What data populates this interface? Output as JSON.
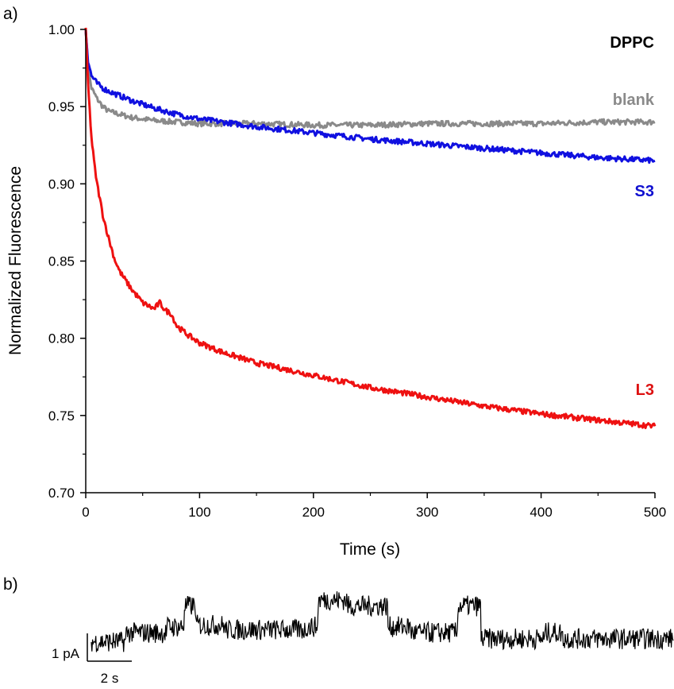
{
  "panel_labels": [
    "a)",
    "b)"
  ],
  "chart_data": [
    {
      "type": "line",
      "title": "DPPC",
      "xlabel": "Time (s)",
      "ylabel": "Normalized Fluorescence",
      "xlim": [
        0,
        500
      ],
      "ylim": [
        0.7,
        1.0
      ],
      "x_ticks": [
        "0",
        "100",
        "200",
        "300",
        "400",
        "500"
      ],
      "y_ticks": [
        "0.70",
        "0.75",
        "0.80",
        "0.85",
        "0.90",
        "0.95",
        "1.00"
      ],
      "grid": false,
      "series": [
        {
          "name": "blank",
          "color": "#8a8a8a",
          "x": [
            0,
            2,
            5,
            10,
            15,
            20,
            30,
            40,
            60,
            80,
            100,
            150,
            200,
            250,
            300,
            350,
            400,
            450,
            500
          ],
          "y": [
            1.0,
            0.975,
            0.962,
            0.955,
            0.95,
            0.947,
            0.945,
            0.943,
            0.941,
            0.94,
            0.939,
            0.939,
            0.938,
            0.938,
            0.939,
            0.939,
            0.939,
            0.94,
            0.94
          ]
        },
        {
          "name": "S3",
          "color": "#1010e0",
          "x": [
            0,
            2,
            5,
            10,
            15,
            20,
            30,
            40,
            60,
            80,
            100,
            150,
            200,
            250,
            300,
            350,
            400,
            450,
            500
          ],
          "y": [
            1.0,
            0.98,
            0.97,
            0.965,
            0.962,
            0.96,
            0.957,
            0.954,
            0.949,
            0.945,
            0.942,
            0.937,
            0.933,
            0.929,
            0.926,
            0.923,
            0.92,
            0.917,
            0.915
          ]
        },
        {
          "name": "L3",
          "color": "#ee1111",
          "x": [
            0,
            2,
            5,
            8,
            10,
            15,
            20,
            25,
            30,
            40,
            50,
            60,
            65,
            70,
            75,
            80,
            90,
            100,
            120,
            150,
            200,
            250,
            300,
            350,
            400,
            450,
            500
          ],
          "y": [
            1.0,
            0.965,
            0.93,
            0.91,
            0.9,
            0.88,
            0.865,
            0.852,
            0.843,
            0.832,
            0.823,
            0.819,
            0.823,
            0.818,
            0.816,
            0.808,
            0.802,
            0.797,
            0.791,
            0.784,
            0.776,
            0.768,
            0.762,
            0.756,
            0.751,
            0.747,
            0.743
          ]
        }
      ]
    },
    {
      "type": "line",
      "scale_bar_y_label": "1 pA",
      "scale_bar_x_label": "2 s",
      "trace_levels": [
        [
          0.0,
          0.3
        ],
        [
          0.06,
          0.45
        ],
        [
          0.13,
          0.55
        ],
        [
          0.16,
          0.9
        ],
        [
          0.18,
          0.58
        ],
        [
          0.23,
          0.5
        ],
        [
          0.37,
          0.55
        ],
        [
          0.39,
          1.0
        ],
        [
          0.44,
          0.9
        ],
        [
          0.51,
          0.55
        ],
        [
          0.55,
          0.45
        ],
        [
          0.63,
          0.9
        ],
        [
          0.67,
          0.35
        ],
        [
          0.78,
          0.45
        ],
        [
          0.81,
          0.35
        ],
        [
          1.0,
          0.3
        ]
      ]
    }
  ]
}
